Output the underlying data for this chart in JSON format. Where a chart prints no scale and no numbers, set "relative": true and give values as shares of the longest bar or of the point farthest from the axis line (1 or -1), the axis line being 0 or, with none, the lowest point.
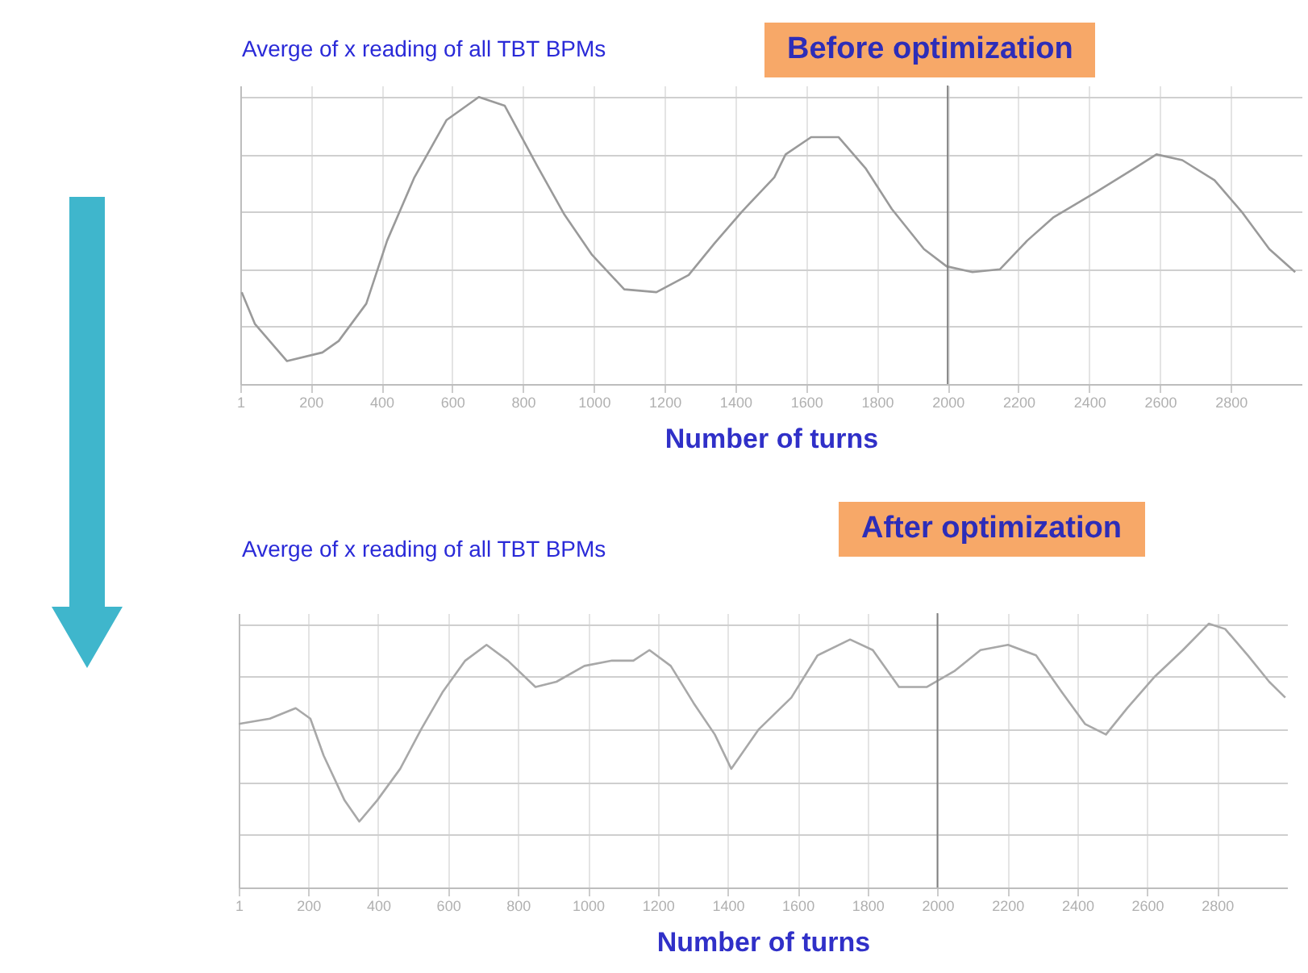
{
  "chart_data": [
    {
      "type": "line",
      "title": "Averge of x reading of all TBT BPMs",
      "subtitle": "Before optimization",
      "xlabel": "Number of turns",
      "relative": true,
      "grid": true,
      "xlim": [
        1,
        3000
      ],
      "xticks": [
        1,
        200,
        400,
        600,
        800,
        1000,
        1200,
        1400,
        1600,
        1800,
        2000,
        2200,
        2400,
        2600,
        2800
      ],
      "ref_lines": [
        {
          "axis": "x",
          "value": 2000,
          "color": "#808080"
        }
      ],
      "series": [
        {
          "color": "#9a9a9a",
          "x": [
            5,
            42,
            133,
            233,
            279,
            357,
            416,
            493,
            584,
            675,
            748,
            840,
            917,
            995,
            1086,
            1177,
            1268,
            1341,
            1418,
            1510,
            1542,
            1614,
            1692,
            1769,
            1842,
            1933,
            1997,
            2070,
            2148,
            2225,
            2298,
            2421,
            2526,
            2590,
            2663,
            2754,
            2831,
            2909,
            2982
          ],
          "values": [
            0.32,
            0.21,
            0.08,
            0.11,
            0.15,
            0.28,
            0.5,
            0.72,
            0.92,
            1,
            0.97,
            0.76,
            0.59,
            0.45,
            0.33,
            0.32,
            0.38,
            0.49,
            0.6,
            0.72,
            0.8,
            0.86,
            0.86,
            0.75,
            0.61,
            0.47,
            0.41,
            0.39,
            0.4,
            0.5,
            0.58,
            0.67,
            0.75,
            0.8,
            0.78,
            0.71,
            0.6,
            0.47,
            0.39
          ]
        }
      ]
    },
    {
      "type": "line",
      "title": "Averge of x reading of all TBT BPMs",
      "subtitle": "After optimization",
      "xlabel": "Number of turns",
      "relative": true,
      "grid": true,
      "xlim": [
        1,
        3000
      ],
      "xticks": [
        1,
        200,
        400,
        600,
        800,
        1000,
        1200,
        1400,
        1600,
        1800,
        2000,
        2200,
        2400,
        2600,
        2800
      ],
      "ref_lines": [
        {
          "axis": "x",
          "value": 2000,
          "color": "#808080"
        }
      ],
      "series": [
        {
          "color": "#a8a8a8",
          "x": [
            1,
            90,
            164,
            206,
            244,
            304,
            346,
            397,
            463,
            523,
            584,
            649,
            710,
            771,
            850,
            910,
            990,
            1069,
            1130,
            1176,
            1237,
            1302,
            1363,
            1410,
            1489,
            1582,
            1657,
            1750,
            1815,
            1890,
            1969,
            2048,
            2123,
            2202,
            2282,
            2356,
            2422,
            2482,
            2543,
            2622,
            2702,
            2776,
            2823,
            2888,
            2949,
            2995
          ],
          "values": [
            0.62,
            0.64,
            0.68,
            0.64,
            0.5,
            0.33,
            0.25,
            0.33,
            0.45,
            0.6,
            0.74,
            0.86,
            0.92,
            0.86,
            0.76,
            0.78,
            0.84,
            0.86,
            0.86,
            0.9,
            0.84,
            0.7,
            0.58,
            0.45,
            0.6,
            0.72,
            0.88,
            0.94,
            0.9,
            0.76,
            0.76,
            0.82,
            0.9,
            0.92,
            0.88,
            0.74,
            0.62,
            0.58,
            0.68,
            0.8,
            0.9,
            1,
            0.98,
            0.88,
            0.78,
            0.72
          ]
        }
      ]
    }
  ]
}
